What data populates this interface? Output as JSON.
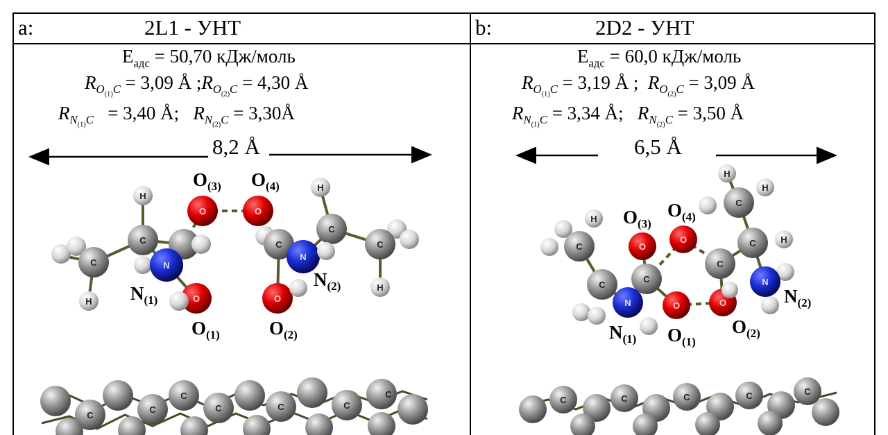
{
  "panel_a": {
    "letter": "a:",
    "title": "2L1 - УНТ",
    "energy": "Eадс = 50,70 кДж/моль",
    "ro_line": "R O(1)C = 3,09 Å ;R O(2)C = 4,30 Å",
    "rn_line": "R N(1)C = 3,40 Å;  R N(2)C = 3,30Å",
    "distance": "8,2 Å",
    "labels": {
      "O3": "O(3)",
      "O4": "O(4)",
      "N1": "N(1)",
      "N2": "N(2)",
      "O1": "O(1)",
      "O2": "O(2)"
    }
  },
  "panel_b": {
    "letter": "b:",
    "title": "2D2 - УНТ",
    "energy": "Eадс = 60,0 кДж/моль",
    "ro_line": "R O(1)C = 3,19 Å ; R O(2)C = 3,09 Å",
    "rn_line": "R N(1)C = 3,34 Å;  R N(2)C = 3,50 Å",
    "distance": "6,5 Å",
    "labels": {
      "O3": "O(3)",
      "O4": "O(4)",
      "N1": "N(1)",
      "N2": "N(2)",
      "O1": "O(1)",
      "O2": "O(2)"
    }
  },
  "colors": {
    "carbon": "#8a8a8a",
    "oxygen": "#d00000",
    "nitrogen": "#1a2fd0",
    "hydrogen": "#e6e6e6",
    "bond": "#5a5a2a"
  }
}
